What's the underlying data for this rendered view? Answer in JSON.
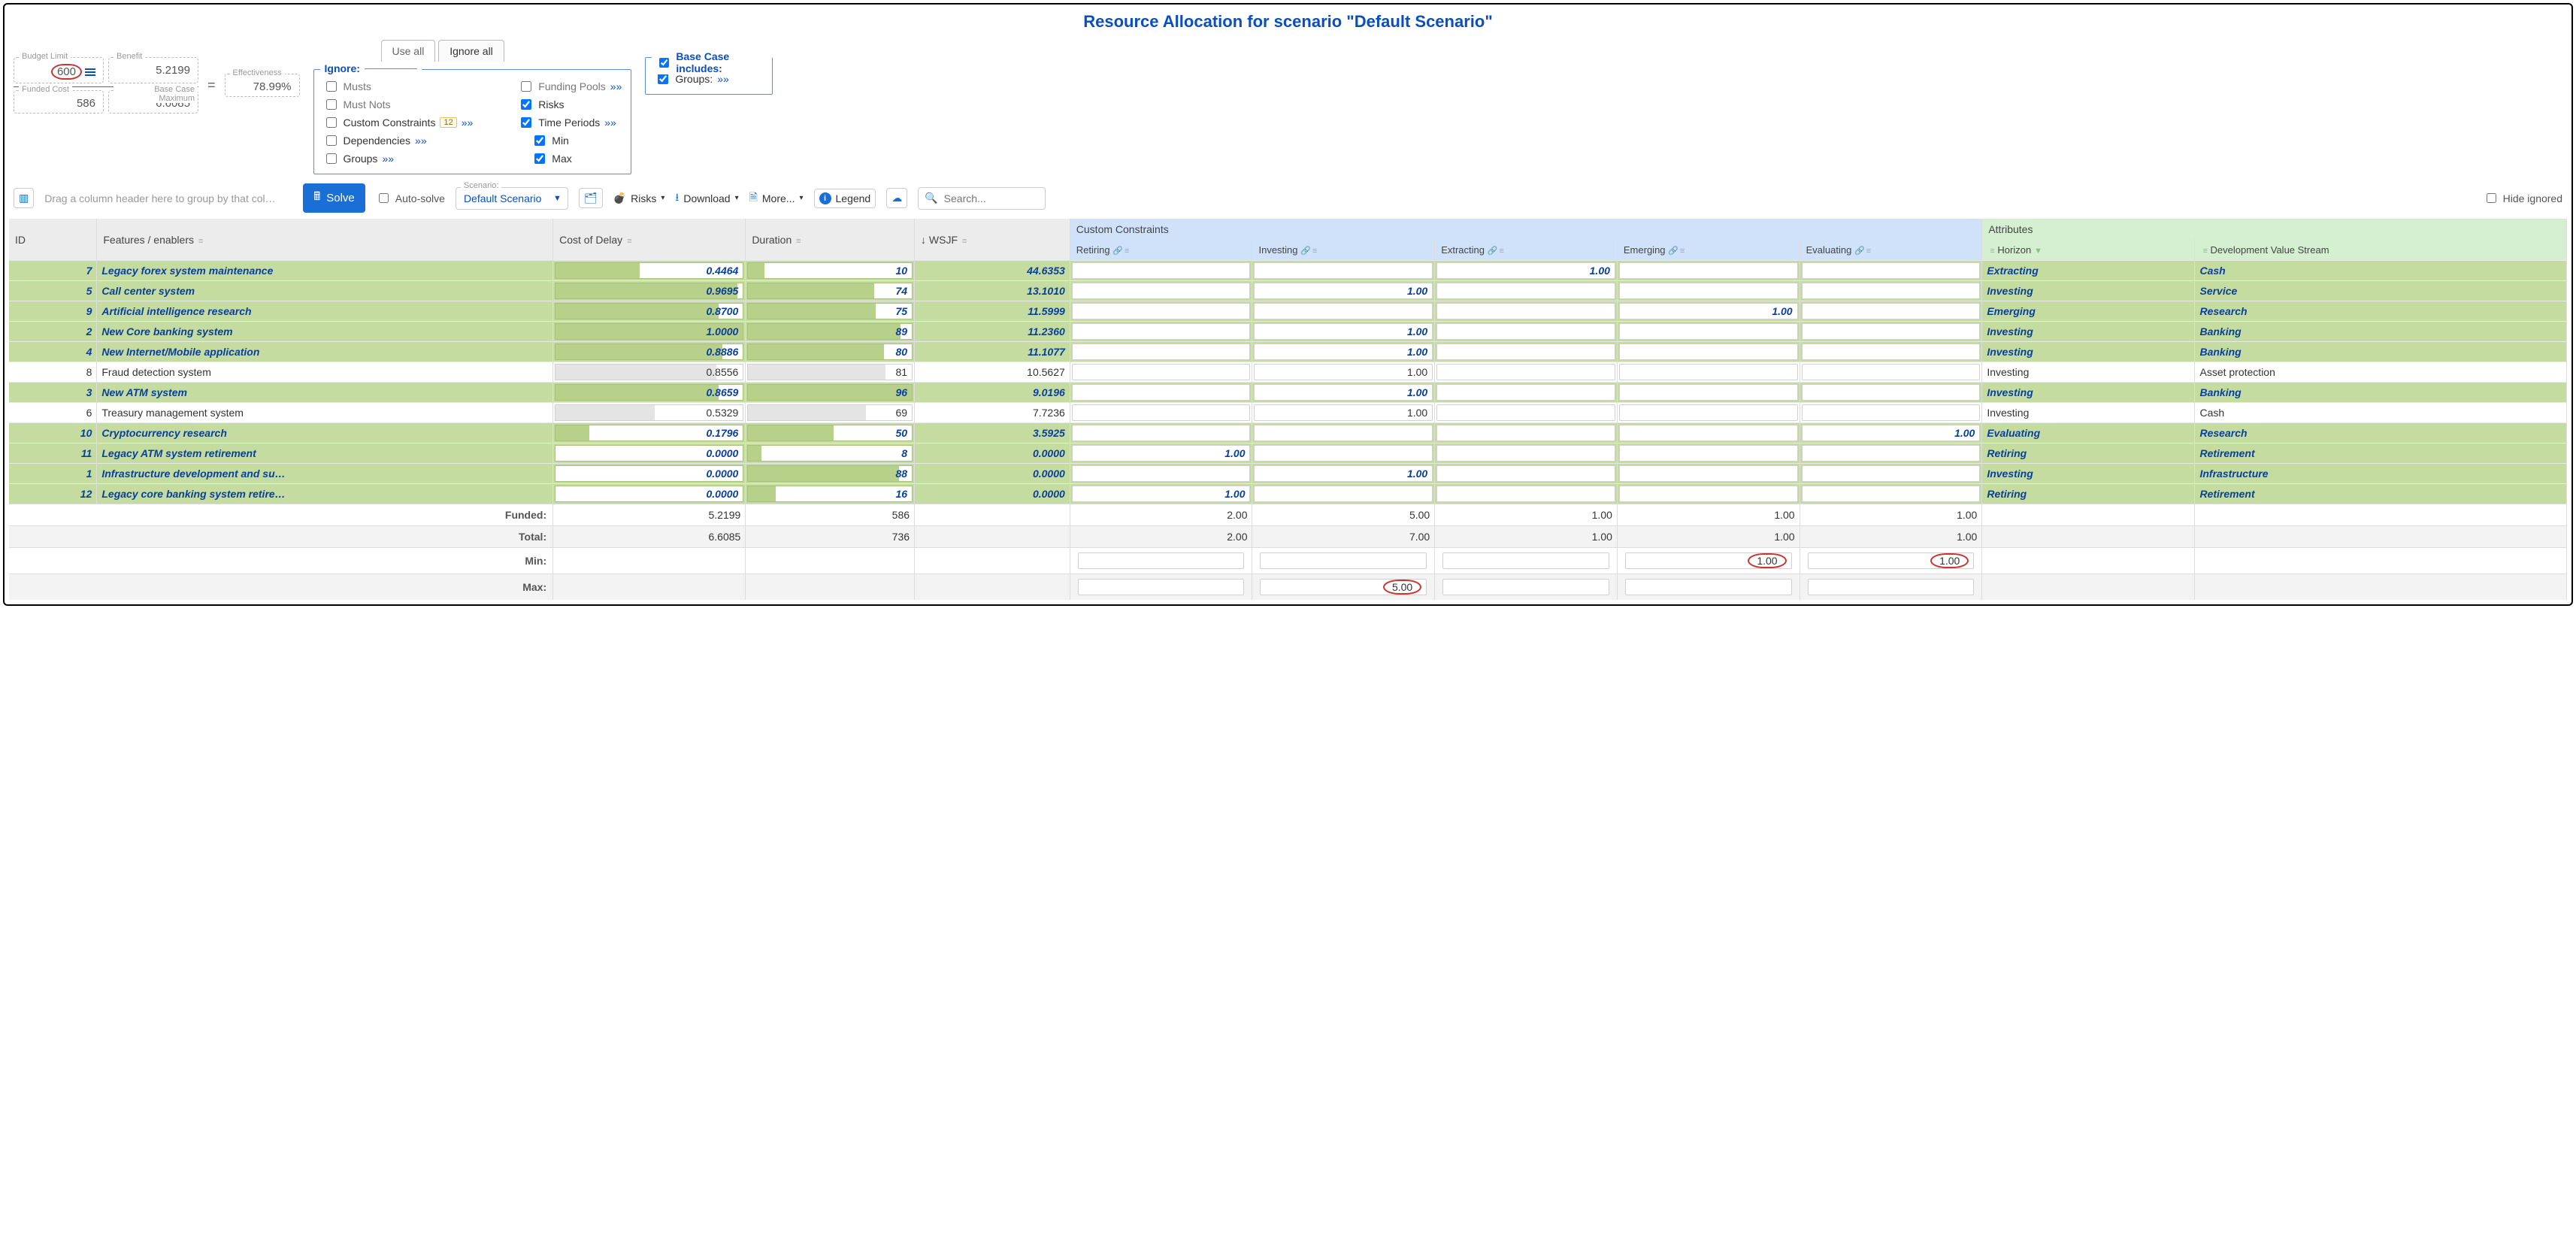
{
  "title": "Resource Allocation for scenario \"Default Scenario\"",
  "budget": {
    "limit_label": "Budget Limit",
    "limit_value": "600",
    "benefit_label": "Benefit",
    "benefit_value": "5.2199",
    "funded_cost_label": "Funded Cost",
    "funded_cost_value": "586",
    "base_max_label": "Base Case Maximum",
    "base_max_value": "6.6085",
    "eff_label": "Effectiveness",
    "eff_value": "78.99%"
  },
  "ignore": {
    "use_all": "Use all",
    "ignore_all": "Ignore all",
    "legend": "Ignore:",
    "musts": "Musts",
    "must_nots": "Must Nots",
    "custom_constraints": "Custom Constraints",
    "cc_badge": "12",
    "dependencies": "Dependencies",
    "groups": "Groups",
    "funding_pools": "Funding Pools",
    "risks": "Risks",
    "time_periods": "Time Periods",
    "min": "Min",
    "max": "Max",
    "more": "»»"
  },
  "basecase": {
    "legend": "Base Case includes:",
    "groups": "Groups:",
    "more": "»»"
  },
  "toolbar": {
    "group_hint": "Drag a column header here to group by that col…",
    "solve": "Solve",
    "auto_solve": "Auto-solve",
    "scenario_label": "Scenario:",
    "scenario_value": "Default Scenario",
    "risks": "Risks",
    "download": "Download",
    "more": "More...",
    "legend": "Legend",
    "search_placeholder": "Search...",
    "hide_ignored": "Hide ignored"
  },
  "columns": {
    "id": "ID",
    "features": "Features / enablers",
    "cod": "Cost of Delay",
    "duration": "Duration",
    "wsjf": "WSJF",
    "cc_group": "Custom Constraints",
    "retiring": "Retiring",
    "investing": "Investing",
    "extracting": "Extracting",
    "emerging": "Emerging",
    "evaluating": "Evaluating",
    "attr_group": "Attributes",
    "horizon": "Horizon",
    "dvs": "Development Value Stream"
  },
  "rows": [
    {
      "id": "7",
      "name": "Legacy forex system maintenance",
      "cod": "0.4464",
      "cod_pct": 45,
      "dur": "10",
      "dur_pct": 10,
      "wsjf": "44.6353",
      "cc": {
        "extracting": "1.00"
      },
      "horizon": "Extracting",
      "dvs": "Cash",
      "funded": true
    },
    {
      "id": "5",
      "name": "Call center system",
      "cod": "0.9695",
      "cod_pct": 97,
      "dur": "74",
      "dur_pct": 77,
      "wsjf": "13.1010",
      "cc": {
        "investing": "1.00"
      },
      "horizon": "Investing",
      "dvs": "Service",
      "funded": true
    },
    {
      "id": "9",
      "name": "Artificial intelligence research",
      "cod": "0.8700",
      "cod_pct": 87,
      "dur": "75",
      "dur_pct": 78,
      "wsjf": "11.5999",
      "cc": {
        "emerging": "1.00"
      },
      "horizon": "Emerging",
      "dvs": "Research",
      "funded": true
    },
    {
      "id": "2",
      "name": "New Core banking system",
      "cod": "1.0000",
      "cod_pct": 100,
      "dur": "89",
      "dur_pct": 93,
      "wsjf": "11.2360",
      "cc": {
        "investing": "1.00"
      },
      "horizon": "Investing",
      "dvs": "Banking",
      "funded": true
    },
    {
      "id": "4",
      "name": "New Internet/Mobile application",
      "cod": "0.8886",
      "cod_pct": 89,
      "dur": "80",
      "dur_pct": 83,
      "wsjf": "11.1077",
      "cc": {
        "investing": "1.00"
      },
      "horizon": "Investing",
      "dvs": "Banking",
      "funded": true
    },
    {
      "id": "8",
      "name": "Fraud detection system",
      "cod": "0.8556",
      "cod_pct": 86,
      "dur": "81",
      "dur_pct": 84,
      "wsjf": "10.5627",
      "cc": {
        "investing": "1.00"
      },
      "horizon": "Investing",
      "dvs": "Asset protection",
      "funded": false
    },
    {
      "id": "3",
      "name": "New ATM system",
      "cod": "0.8659",
      "cod_pct": 87,
      "dur": "96",
      "dur_pct": 100,
      "wsjf": "9.0196",
      "cc": {
        "investing": "1.00"
      },
      "horizon": "Investing",
      "dvs": "Banking",
      "funded": true
    },
    {
      "id": "6",
      "name": "Treasury management system",
      "cod": "0.5329",
      "cod_pct": 53,
      "dur": "69",
      "dur_pct": 72,
      "wsjf": "7.7236",
      "cc": {
        "investing": "1.00"
      },
      "horizon": "Investing",
      "dvs": "Cash",
      "funded": false
    },
    {
      "id": "10",
      "name": "Cryptocurrency research",
      "cod": "0.1796",
      "cod_pct": 18,
      "dur": "50",
      "dur_pct": 52,
      "wsjf": "3.5925",
      "cc": {
        "evaluating": "1.00"
      },
      "horizon": "Evaluating",
      "dvs": "Research",
      "funded": true
    },
    {
      "id": "11",
      "name": "Legacy ATM system retirement",
      "cod": "0.0000",
      "cod_pct": 0,
      "dur": "8",
      "dur_pct": 8,
      "wsjf": "0.0000",
      "cc": {
        "retiring": "1.00"
      },
      "horizon": "Retiring",
      "dvs": "Retirement",
      "funded": true
    },
    {
      "id": "1",
      "name": "Infrastructure development and su…",
      "cod": "0.0000",
      "cod_pct": 0,
      "dur": "88",
      "dur_pct": 92,
      "wsjf": "0.0000",
      "cc": {
        "investing": "1.00"
      },
      "horizon": "Investing",
      "dvs": "Infrastructure",
      "funded": true
    },
    {
      "id": "12",
      "name": "Legacy core banking system retire…",
      "cod": "0.0000",
      "cod_pct": 0,
      "dur": "16",
      "dur_pct": 17,
      "wsjf": "0.0000",
      "cc": {
        "retiring": "1.00"
      },
      "horizon": "Retiring",
      "dvs": "Retirement",
      "funded": true
    }
  ],
  "footer": {
    "funded_label": "Funded:",
    "total_label": "Total:",
    "min_label": "Min:",
    "max_label": "Max:",
    "funded": {
      "cod": "5.2199",
      "dur": "586",
      "retiring": "2.00",
      "investing": "5.00",
      "extracting": "1.00",
      "emerging": "1.00",
      "evaluating": "1.00"
    },
    "total": {
      "cod": "6.6085",
      "dur": "736",
      "retiring": "2.00",
      "investing": "7.00",
      "extracting": "1.00",
      "emerging": "1.00",
      "evaluating": "1.00"
    },
    "min": {
      "emerging": "1.00",
      "evaluating": "1.00"
    },
    "max": {
      "investing": "5.00"
    }
  },
  "colors": {
    "funded_row": "#c5dca0",
    "funded_text": "#0a3f9a",
    "primary": "#1a6fd6",
    "header_blue": "#cfe2fa",
    "header_green": "#d5f0d0",
    "highlight_red": "#c33"
  }
}
